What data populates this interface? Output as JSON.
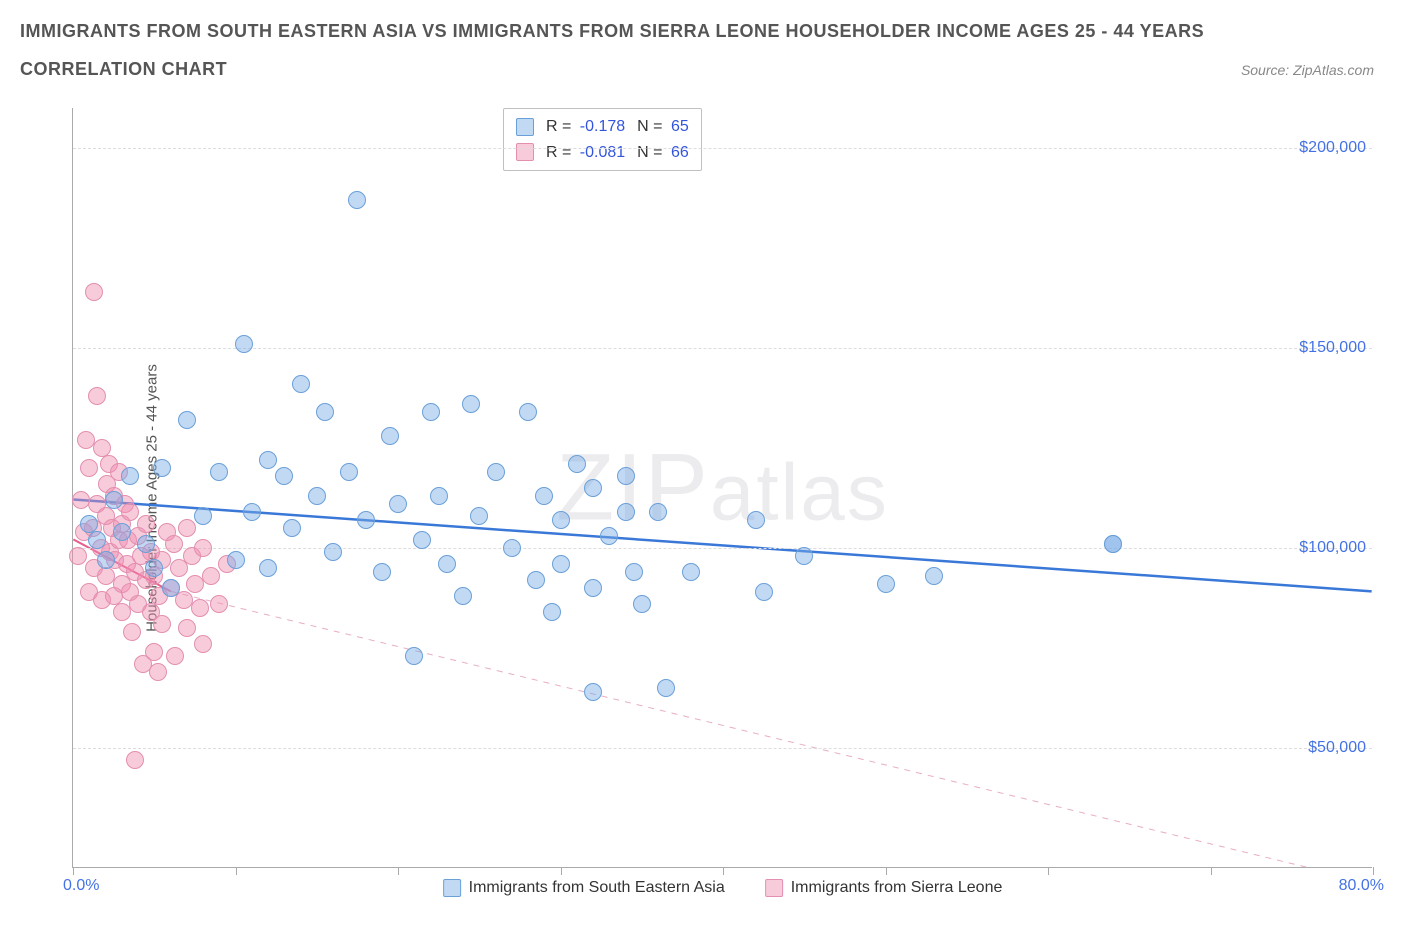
{
  "title": "IMMIGRANTS FROM SOUTH EASTERN ASIA VS IMMIGRANTS FROM SIERRA LEONE HOUSEHOLDER INCOME AGES 25 - 44 YEARS",
  "subtitle": "CORRELATION CHART",
  "source": "Source: ZipAtlas.com",
  "ylabel": "Householder Income Ages 25 - 44 years",
  "watermark": "ZIPatlas",
  "chart": {
    "type": "scatter",
    "background_color": "#ffffff",
    "grid_color": "#dddddd",
    "axis_color": "#aaaaaa",
    "label_color": "#555555",
    "tick_label_color": "#4472e4",
    "x_min": 0.0,
    "x_max": 80.0,
    "x_min_label": "0.0%",
    "x_max_label": "80.0%",
    "x_tick_positions_pct": [
      0,
      12.5,
      25,
      37.5,
      50,
      62.5,
      75,
      87.5,
      100
    ],
    "y_min": 20000,
    "y_max": 210000,
    "y_ticks": [
      {
        "value": 50000,
        "label": "$50,000"
      },
      {
        "value": 100000,
        "label": "$100,000"
      },
      {
        "value": 150000,
        "label": "$150,000"
      },
      {
        "value": 200000,
        "label": "$200,000"
      }
    ],
    "series": [
      {
        "name": "Immigrants from South Eastern Asia",
        "short": "blue",
        "point_fill": "rgba(120,170,230,0.45)",
        "point_stroke": "#6aa0d8",
        "point_radius": 9,
        "trend_color": "#3a78d8",
        "trend_width": 2.5,
        "trend_dash": "none",
        "trend_y_start": 112000,
        "trend_y_end": 89000,
        "swatch_fill": "rgba(120,170,230,0.45)",
        "swatch_border": "#6aa0d8",
        "R": "-0.178",
        "N": "65",
        "points": [
          {
            "x": 1.0,
            "y": 106000
          },
          {
            "x": 1.5,
            "y": 102000
          },
          {
            "x": 2.0,
            "y": 97000
          },
          {
            "x": 2.5,
            "y": 112000
          },
          {
            "x": 3.0,
            "y": 104000
          },
          {
            "x": 3.5,
            "y": 118000
          },
          {
            "x": 4.5,
            "y": 101000
          },
          {
            "x": 5.0,
            "y": 95000
          },
          {
            "x": 5.5,
            "y": 120000
          },
          {
            "x": 6.0,
            "y": 90000
          },
          {
            "x": 7.0,
            "y": 132000
          },
          {
            "x": 8.0,
            "y": 108000
          },
          {
            "x": 9.0,
            "y": 119000
          },
          {
            "x": 10.5,
            "y": 151000
          },
          {
            "x": 10.0,
            "y": 97000
          },
          {
            "x": 11.0,
            "y": 109000
          },
          {
            "x": 12.0,
            "y": 122000
          },
          {
            "x": 12.0,
            "y": 95000
          },
          {
            "x": 13.0,
            "y": 118000
          },
          {
            "x": 13.5,
            "y": 105000
          },
          {
            "x": 14.0,
            "y": 141000
          },
          {
            "x": 15.0,
            "y": 113000
          },
          {
            "x": 15.5,
            "y": 134000
          },
          {
            "x": 16.0,
            "y": 99000
          },
          {
            "x": 17.0,
            "y": 119000
          },
          {
            "x": 17.5,
            "y": 187000
          },
          {
            "x": 18.0,
            "y": 107000
          },
          {
            "x": 19.0,
            "y": 94000
          },
          {
            "x": 19.5,
            "y": 128000
          },
          {
            "x": 20.0,
            "y": 111000
          },
          {
            "x": 21.0,
            "y": 73000
          },
          {
            "x": 21.5,
            "y": 102000
          },
          {
            "x": 22.0,
            "y": 134000
          },
          {
            "x": 22.5,
            "y": 113000
          },
          {
            "x": 23.0,
            "y": 96000
          },
          {
            "x": 24.0,
            "y": 88000
          },
          {
            "x": 24.5,
            "y": 136000
          },
          {
            "x": 25.0,
            "y": 108000
          },
          {
            "x": 26.0,
            "y": 119000
          },
          {
            "x": 27.0,
            "y": 100000
          },
          {
            "x": 28.0,
            "y": 134000
          },
          {
            "x": 28.5,
            "y": 92000
          },
          {
            "x": 29.0,
            "y": 113000
          },
          {
            "x": 29.5,
            "y": 84000
          },
          {
            "x": 30.0,
            "y": 107000
          },
          {
            "x": 30.0,
            "y": 96000
          },
          {
            "x": 31.0,
            "y": 121000
          },
          {
            "x": 32.0,
            "y": 90000
          },
          {
            "x": 32.0,
            "y": 115000
          },
          {
            "x": 33.0,
            "y": 103000
          },
          {
            "x": 32.0,
            "y": 64000
          },
          {
            "x": 34.0,
            "y": 118000
          },
          {
            "x": 34.5,
            "y": 94000
          },
          {
            "x": 35.0,
            "y": 86000
          },
          {
            "x": 36.5,
            "y": 65000
          },
          {
            "x": 36.0,
            "y": 109000
          },
          {
            "x": 38.0,
            "y": 94000
          },
          {
            "x": 42.0,
            "y": 107000
          },
          {
            "x": 42.5,
            "y": 89000
          },
          {
            "x": 45.0,
            "y": 98000
          },
          {
            "x": 50.0,
            "y": 91000
          },
          {
            "x": 53.0,
            "y": 93000
          },
          {
            "x": 64.0,
            "y": 101000
          },
          {
            "x": 64.0,
            "y": 101000
          },
          {
            "x": 34.0,
            "y": 109000
          }
        ]
      },
      {
        "name": "Immigrants from Sierra Leone",
        "short": "pink",
        "point_fill": "rgba(240,140,175,0.45)",
        "point_stroke": "#e38fb0",
        "point_radius": 9,
        "trend_color": "#e85f8f",
        "trend_width": 2,
        "trend_dash": "solid_then_dashed",
        "trend_y_start": 102000,
        "trend_mid_x": 6.0,
        "trend_mid_y": 89000,
        "trend_y_end": 16000,
        "dash_color": "#e8aebf",
        "swatch_fill": "rgba(240,140,175,0.45)",
        "swatch_border": "#e38fb0",
        "R": "-0.081",
        "N": "66",
        "points": [
          {
            "x": 0.3,
            "y": 98000
          },
          {
            "x": 0.5,
            "y": 112000
          },
          {
            "x": 0.7,
            "y": 104000
          },
          {
            "x": 0.8,
            "y": 127000
          },
          {
            "x": 1.0,
            "y": 89000
          },
          {
            "x": 1.0,
            "y": 120000
          },
          {
            "x": 1.2,
            "y": 105000
          },
          {
            "x": 1.3,
            "y": 164000
          },
          {
            "x": 1.3,
            "y": 95000
          },
          {
            "x": 1.5,
            "y": 111000
          },
          {
            "x": 1.5,
            "y": 138000
          },
          {
            "x": 1.7,
            "y": 100000
          },
          {
            "x": 1.8,
            "y": 125000
          },
          {
            "x": 1.8,
            "y": 87000
          },
          {
            "x": 2.0,
            "y": 108000
          },
          {
            "x": 2.0,
            "y": 93000
          },
          {
            "x": 2.1,
            "y": 116000
          },
          {
            "x": 2.2,
            "y": 121000
          },
          {
            "x": 2.3,
            "y": 99000
          },
          {
            "x": 2.4,
            "y": 105000
          },
          {
            "x": 2.5,
            "y": 88000
          },
          {
            "x": 2.5,
            "y": 113000
          },
          {
            "x": 2.6,
            "y": 97000
          },
          {
            "x": 2.8,
            "y": 102000
          },
          {
            "x": 2.8,
            "y": 119000
          },
          {
            "x": 3.0,
            "y": 91000
          },
          {
            "x": 3.0,
            "y": 106000
          },
          {
            "x": 3.0,
            "y": 84000
          },
          {
            "x": 3.2,
            "y": 111000
          },
          {
            "x": 3.3,
            "y": 96000
          },
          {
            "x": 3.4,
            "y": 102000
          },
          {
            "x": 3.5,
            "y": 89000
          },
          {
            "x": 3.5,
            "y": 109000
          },
          {
            "x": 3.6,
            "y": 79000
          },
          {
            "x": 3.8,
            "y": 94000
          },
          {
            "x": 3.8,
            "y": 47000
          },
          {
            "x": 4.0,
            "y": 103000
          },
          {
            "x": 4.0,
            "y": 86000
          },
          {
            "x": 4.2,
            "y": 98000
          },
          {
            "x": 4.3,
            "y": 71000
          },
          {
            "x": 4.5,
            "y": 92000
          },
          {
            "x": 4.5,
            "y": 106000
          },
          {
            "x": 4.8,
            "y": 84000
          },
          {
            "x": 4.8,
            "y": 99000
          },
          {
            "x": 5.0,
            "y": 74000
          },
          {
            "x": 5.0,
            "y": 93000
          },
          {
            "x": 5.2,
            "y": 69000
          },
          {
            "x": 5.3,
            "y": 88000
          },
          {
            "x": 5.5,
            "y": 97000
          },
          {
            "x": 5.5,
            "y": 81000
          },
          {
            "x": 5.8,
            "y": 104000
          },
          {
            "x": 6.0,
            "y": 90000
          },
          {
            "x": 6.2,
            "y": 101000
          },
          {
            "x": 6.3,
            "y": 73000
          },
          {
            "x": 6.5,
            "y": 95000
          },
          {
            "x": 6.8,
            "y": 87000
          },
          {
            "x": 7.0,
            "y": 105000
          },
          {
            "x": 7.0,
            "y": 80000
          },
          {
            "x": 7.3,
            "y": 98000
          },
          {
            "x": 7.5,
            "y": 91000
          },
          {
            "x": 7.8,
            "y": 85000
          },
          {
            "x": 8.0,
            "y": 100000
          },
          {
            "x": 8.5,
            "y": 93000
          },
          {
            "x": 9.0,
            "y": 86000
          },
          {
            "x": 9.5,
            "y": 96000
          },
          {
            "x": 8.0,
            "y": 76000
          }
        ]
      }
    ]
  },
  "legend": [
    {
      "label": "Immigrants from South Eastern Asia",
      "fill": "rgba(120,170,230,0.45)",
      "border": "#6aa0d8"
    },
    {
      "label": "Immigrants from Sierra Leone",
      "fill": "rgba(240,140,175,0.45)",
      "border": "#e38fb0"
    }
  ]
}
